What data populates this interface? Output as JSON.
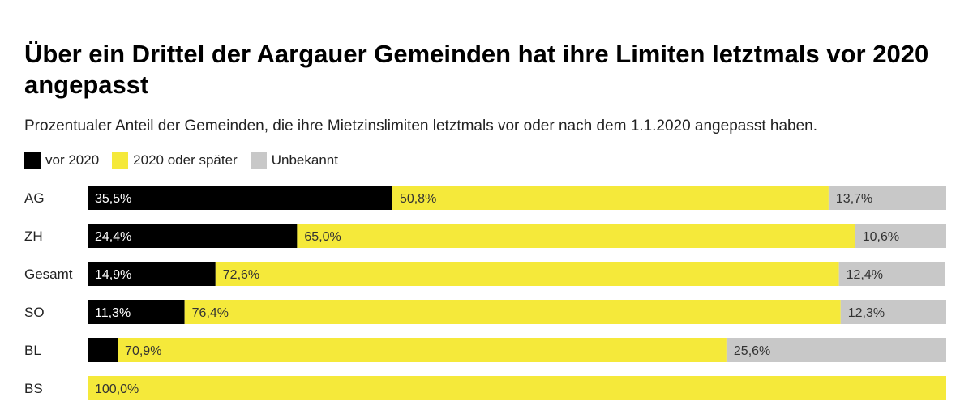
{
  "title": "Über ein Drittel der Aargauer Gemeinden hat ihre Limiten letztmals vor 2020 angepasst",
  "subtitle": "Prozentualer Anteil der Gemeinden, die ihre Mietzinslimiten letztmals vor oder nach dem 1.1.2020 angepasst haben.",
  "colors": {
    "vor2020": "#000000",
    "ab2020": "#f5e93a",
    "unbekannt": "#c8c8c8"
  },
  "chart_data": {
    "type": "bar",
    "orientation": "horizontal",
    "stacked": true,
    "categories": [
      "AG",
      "ZH",
      "Gesamt",
      "SO",
      "BL",
      "BS"
    ],
    "series": [
      {
        "name": "vor 2020",
        "values": [
          35.5,
          24.4,
          14.9,
          11.3,
          3.5,
          0
        ],
        "labels": [
          "35,5%",
          "24,4%",
          "14,9%",
          "11,3%",
          "",
          ""
        ]
      },
      {
        "name": "2020 oder später",
        "values": [
          50.8,
          65.0,
          72.6,
          76.4,
          70.9,
          100.0
        ],
        "labels": [
          "50,8%",
          "65,0%",
          "72,6%",
          "76,4%",
          "70,9%",
          "100,0%"
        ]
      },
      {
        "name": "Unbekannt",
        "values": [
          13.7,
          10.6,
          12.4,
          12.3,
          25.6,
          0
        ],
        "labels": [
          "13,7%",
          "10,6%",
          "12,4%",
          "12,3%",
          "25,6%",
          ""
        ]
      }
    ],
    "xlim": [
      0,
      100
    ],
    "legend_position": "top-left"
  }
}
